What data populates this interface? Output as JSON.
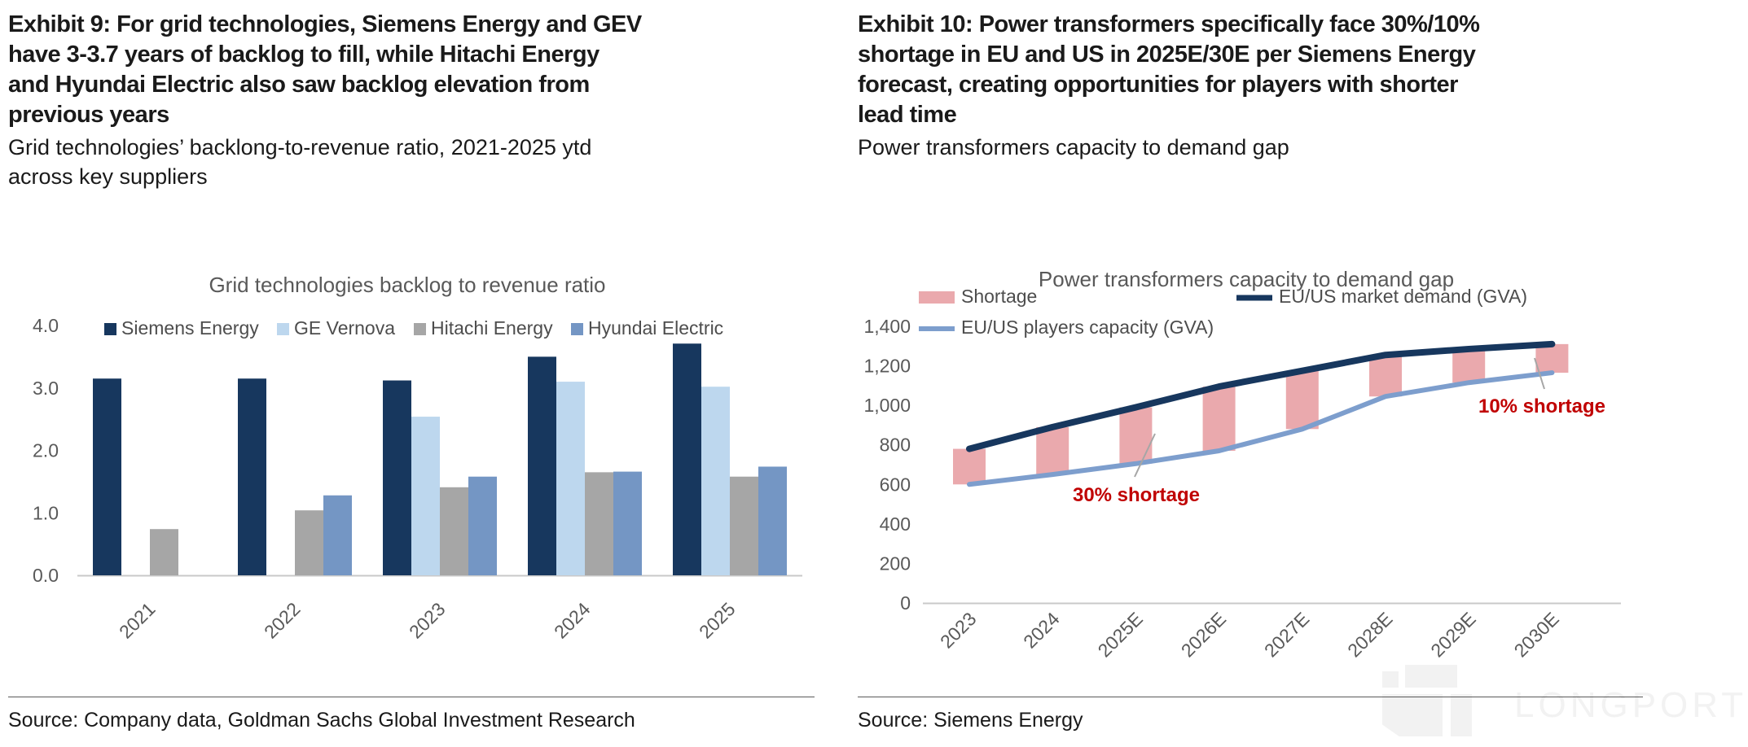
{
  "left_panel": {
    "exhibit_title": "Exhibit 9: For grid technologies, Siemens Energy and GEV\nhave 3-3.7 years of backlog to fill, while Hitachi Energy\nand Hyundai Electric also saw backlog elevation from\nprevious years",
    "subtitle": "Grid technologies’ backlong-to-revenue ratio, 2021-2025 ytd\nacross key suppliers",
    "source": "Source: Company data, Goldman Sachs Global Investment Research"
  },
  "right_panel": {
    "exhibit_title": "Exhibit 10: Power transformers specifically face 30%/10%\nshortage in EU and US in 2025E/30E per Siemens Energy\nforecast, creating opportunities for players with shorter\nlead time",
    "subtitle": "Power transformers capacity to demand gap",
    "source": "Source: Siemens Energy"
  },
  "watermark": {
    "text": "LONGPORT",
    "color": "#f2f2f2"
  },
  "chart_data": [
    {
      "id": "grid-backlog",
      "type": "bar",
      "title": "Grid technologies backlog to revenue ratio",
      "categories": [
        "2021",
        "2022",
        "2023",
        "2024",
        "2025"
      ],
      "series": [
        {
          "name": "Siemens Energy",
          "color": "#17375e",
          "values": [
            3.15,
            3.15,
            3.12,
            3.5,
            3.71
          ]
        },
        {
          "name": "GE Vernova",
          "color": "#bdd7ee",
          "values": [
            null,
            null,
            2.54,
            3.1,
            3.02
          ]
        },
        {
          "name": "Hitachi Energy",
          "color": "#a6a6a6",
          "values": [
            0.74,
            1.04,
            1.41,
            1.65,
            1.58
          ]
        },
        {
          "name": "Hyundai Electric",
          "color": "#7496c4",
          "values": [
            null,
            1.28,
            1.58,
            1.66,
            1.74
          ]
        }
      ],
      "ylim": [
        0,
        4
      ],
      "yticks": [
        "0.0",
        "1.0",
        "2.0",
        "3.0",
        "4.0"
      ],
      "legend_position": "top",
      "grid": false
    },
    {
      "id": "transformer-gap",
      "type": "line",
      "title": "Power transformers capacity to demand gap",
      "categories": [
        "2023",
        "2024",
        "2025E",
        "2026E",
        "2027E",
        "2028E",
        "2029E",
        "2030E"
      ],
      "series": [
        {
          "name": "Shortage",
          "type": "bar-range",
          "color": "#eaa9ad",
          "from_series": "EU/US players capacity (GVA)",
          "to_series": "EU/US market demand (GVA)",
          "values": [
            180,
            240,
            285,
            325,
            295,
            210,
            170,
            145
          ]
        },
        {
          "name": "EU/US market demand (GVA)",
          "type": "line",
          "color": "#17375e",
          "values": [
            780,
            890,
            990,
            1095,
            1175,
            1255,
            1285,
            1310
          ]
        },
        {
          "name": "EU/US players capacity (GVA)",
          "type": "line",
          "color": "#7d9ecd",
          "values": [
            600,
            650,
            705,
            770,
            880,
            1045,
            1115,
            1165
          ]
        }
      ],
      "ylim": [
        0,
        1400
      ],
      "yticks": [
        "0",
        "200",
        "400",
        "600",
        "800",
        "1,000",
        "1,200",
        "1,400"
      ],
      "annotations": [
        {
          "text": "30% shortage",
          "color": "#c00000",
          "refers_to": "2025E"
        },
        {
          "text": "10% shortage",
          "color": "#c00000",
          "refers_to": "2030E"
        }
      ],
      "legend_position": "top",
      "grid": false
    }
  ]
}
